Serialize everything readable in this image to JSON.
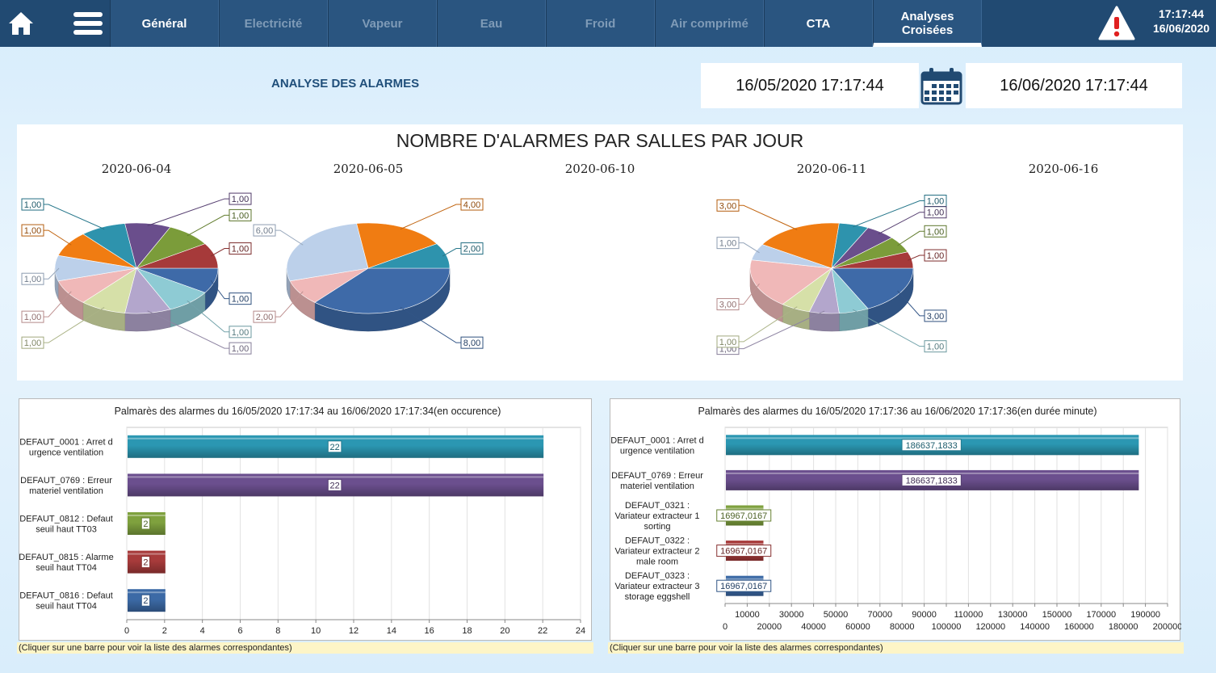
{
  "nav": {
    "tabs": [
      {
        "label": "Général",
        "state": "enabled"
      },
      {
        "label": "Electricité",
        "state": "dim"
      },
      {
        "label": "Vapeur",
        "state": "dim"
      },
      {
        "label": "Eau",
        "state": "dim"
      },
      {
        "label": "Froid",
        "state": "dim"
      },
      {
        "label": "Air comprimé",
        "state": "dim"
      },
      {
        "label": "CTA",
        "state": "enabled"
      },
      {
        "label": "Analyses Croisées",
        "state": "active"
      }
    ],
    "time": "17:17:44",
    "date": "16/06/2020",
    "icons": [
      "home-icon",
      "hamburger-menu-icon",
      "alarm-warning-icon",
      "calendar-icon"
    ]
  },
  "header": {
    "title": "ANALYSE DES ALARMES",
    "date_from": "16/05/2020 17:17:44",
    "date_to": "16/06/2020 17:17:44"
  },
  "colors": {
    "topbar": "#214a72",
    "tab": "#2a5580",
    "title": "#1f4e7a",
    "hint_bg": "#fdf5c7"
  },
  "chart_data": [
    {
      "type": "pie",
      "title": "NOMBRE D'ALARMES PAR SALLES PAR JOUR",
      "pies": [
        {
          "day": "2020-06-04",
          "slices": [
            {
              "label": "1,00",
              "value": 1,
              "color": "#3e6aa8"
            },
            {
              "label": "1,00",
              "value": 1,
              "color": "#8ecbd4"
            },
            {
              "label": "1,00",
              "value": 1,
              "color": "#b3a6cc"
            },
            {
              "label": "1,00",
              "value": 1,
              "color": "#d6e0a8"
            },
            {
              "label": "1,00",
              "value": 1,
              "color": "#f0b8b8"
            },
            {
              "label": "1,00",
              "value": 1,
              "color": "#bcd0ea"
            },
            {
              "label": "1,00",
              "value": 1,
              "color": "#f07c12"
            },
            {
              "label": "1,00",
              "value": 1,
              "color": "#2e93ad"
            },
            {
              "label": "1,00",
              "value": 1,
              "color": "#6a4e8c"
            },
            {
              "label": "1,00",
              "value": 1,
              "color": "#7b9c3a"
            },
            {
              "label": "1,00",
              "value": 1,
              "color": "#a63a3a"
            }
          ]
        },
        {
          "day": "2020-06-05",
          "slices": [
            {
              "label": "8,00",
              "value": 8,
              "color": "#3e6aa8"
            },
            {
              "label": "2,00",
              "value": 2,
              "color": "#f0b8b8"
            },
            {
              "label": "6,00",
              "value": 6,
              "color": "#bcd0ea"
            },
            {
              "label": "4,00",
              "value": 4,
              "color": "#f07c12"
            },
            {
              "label": "2,00",
              "value": 2,
              "color": "#2e93ad"
            }
          ]
        },
        {
          "day": "2020-06-10",
          "slices": []
        },
        {
          "day": "2020-06-11",
          "slices": [
            {
              "label": "3,00",
              "value": 3,
              "color": "#3e6aa8"
            },
            {
              "label": "1,00",
              "value": 1,
              "color": "#8ecbd4"
            },
            {
              "label": "1,00",
              "value": 1,
              "color": "#b3a6cc"
            },
            {
              "label": "1,00",
              "value": 1,
              "color": "#d6e0a8"
            },
            {
              "label": "3,00",
              "value": 3,
              "color": "#f0b8b8"
            },
            {
              "label": "1,00",
              "value": 1,
              "color": "#bcd0ea"
            },
            {
              "label": "3,00",
              "value": 3,
              "color": "#f07c12"
            },
            {
              "label": "1,00",
              "value": 1,
              "color": "#2e93ad"
            },
            {
              "label": "1,00",
              "value": 1,
              "color": "#6a4e8c"
            },
            {
              "label": "1,00",
              "value": 1,
              "color": "#7b9c3a"
            },
            {
              "label": "1,00",
              "value": 1,
              "color": "#a63a3a"
            }
          ]
        },
        {
          "day": "2020-06-16",
          "slices": []
        }
      ]
    },
    {
      "type": "bar",
      "orientation": "horizontal",
      "title": "Palmarès des alarmes du 16/05/2020 17:17:34 au 16/06/2020 17:17:34(en occurence)",
      "categories": [
        "DEFAUT_0001 : Arret d urgence ventilation",
        "DEFAUT_0769 : Erreur materiel ventilation",
        "DEFAUT_0812 : Defaut seuil haut TT03",
        "DEFAUT_0815 : Alarme seuil haut TT04",
        "DEFAUT_0816 : Defaut seuil haut TT04"
      ],
      "values": [
        22,
        22,
        2,
        2,
        2
      ],
      "value_labels": [
        "22",
        "22",
        "2",
        "2",
        "2"
      ],
      "colors": [
        "#2b97b2",
        "#6b4f8e",
        "#7fa13e",
        "#a73b3b",
        "#3c6aa6"
      ],
      "xlim": [
        0,
        24
      ],
      "xticks": [
        "0",
        "2",
        "4",
        "6",
        "8",
        "10",
        "12",
        "14",
        "16",
        "18",
        "20",
        "22",
        "24"
      ],
      "hint": "(Cliquer sur une barre pour voir la liste des alarmes correspondantes)"
    },
    {
      "type": "bar",
      "orientation": "horizontal",
      "title": "Palmarès des alarmes du 16/05/2020 17:17:36 au 16/06/2020 17:17:36(en durée minute)",
      "categories": [
        "DEFAUT_0001 : Arret d urgence ventilation",
        "DEFAUT_0769 : Erreur materiel ventilation",
        "DEFAUT_0321 : Variateur extracteur 1 sorting",
        "DEFAUT_0322 : Variateur extracteur 2 male room",
        "DEFAUT_0323 : Variateur extracteur 3 storage eggshell"
      ],
      "values": [
        186637.1833,
        186637.1833,
        16967.0167,
        16967.0167,
        16967.0167
      ],
      "value_labels": [
        "186637,1833",
        "186637,1833",
        "16967,0167",
        "16967,0167",
        "16967,0167"
      ],
      "colors": [
        "#2b97b2",
        "#6b4f8e",
        "#7fa13e",
        "#a73b3b",
        "#3c6aa6"
      ],
      "xlim": [
        0,
        200000
      ],
      "xticks_upper": [
        "10000",
        "30000",
        "50000",
        "70000",
        "90000",
        "110000",
        "130000",
        "150000",
        "170000",
        "190000"
      ],
      "xticks_lower": [
        "0",
        "20000",
        "40000",
        "60000",
        "80000",
        "100000",
        "120000",
        "140000",
        "160000",
        "180000",
        "200000"
      ],
      "hint": "(Cliquer sur une barre pour voir la liste des alarmes correspondantes)"
    }
  ]
}
